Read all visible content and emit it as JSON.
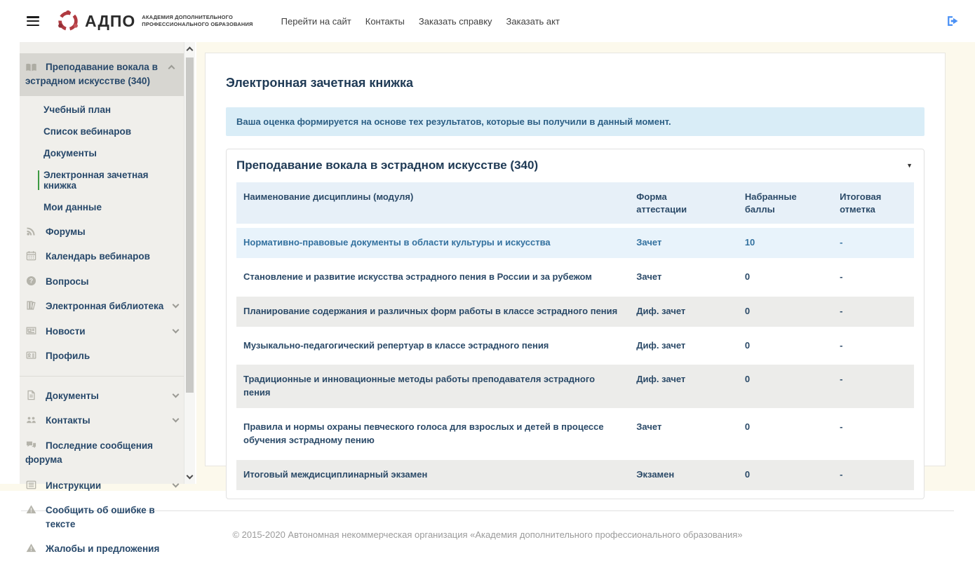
{
  "header": {
    "brand": {
      "name": "АДПО",
      "tagline_line1": "АКАДЕМИЯ ДОПОЛНИТЕЛЬНОГО",
      "tagline_line2": "ПРОФЕССИОНАЛЬНОГО ОБРАЗОВАНИЯ",
      "logo_icon": "adpo-circle-people-logo"
    },
    "menu_icon": "hamburger-icon",
    "logout_icon": "sign-out-icon",
    "nav": [
      {
        "label": "Перейти на сайт"
      },
      {
        "label": "Контакты"
      },
      {
        "label": "Заказать справку"
      },
      {
        "label": "Заказать акт"
      }
    ]
  },
  "sidebar": {
    "course": {
      "label": "Преподавание вокала в эстрадном искусстве (340)",
      "icon": "book-open-icon",
      "expanded": true,
      "children": [
        "Учебный план",
        "Список вебинаров",
        "Документы",
        "Электронная зачетная книжка",
        "Мои данные"
      ],
      "active_child": "Электронная зачетная книжка"
    },
    "items": [
      {
        "label": "Форумы",
        "icon": "forum-icon"
      },
      {
        "label": "Календарь вебинаров",
        "icon": "calendar-icon"
      },
      {
        "label": "Вопросы",
        "icon": "question-circle-icon"
      },
      {
        "label": "Электронная библиотека",
        "icon": "library-icon",
        "expandable": true
      },
      {
        "label": "Новости",
        "icon": "newspaper-icon",
        "expandable": true
      },
      {
        "label": "Профиль",
        "icon": "id-card-icon"
      }
    ],
    "items2": [
      {
        "label": "Документы",
        "icon": "file-text-icon",
        "expandable": true
      },
      {
        "label": "Контакты",
        "icon": "users-icon",
        "expandable": true
      },
      {
        "label": "Последние сообщения форума",
        "icon": "comments-icon"
      },
      {
        "label": "Инструкции",
        "icon": "list-alt-icon",
        "expandable": true
      },
      {
        "label": "Сообщить об ошибке в тексте",
        "icon": "warning-icon"
      },
      {
        "label": "Жалобы и предложения",
        "icon": "warning-icon"
      }
    ]
  },
  "main": {
    "title": "Электронная зачетная книжка",
    "info_banner": "Ваша оценка формируется на основе тех результатов, которые вы получили в данный момент.",
    "panel": {
      "title": "Преподавание вокала в эстрадном искусстве (340)",
      "caret_icon": "caret-down-icon",
      "table": {
        "columns": [
          "Наименование дисциплины (модуля)",
          "Форма аттестации",
          "Набранные баллы",
          "Итоговая отметка"
        ],
        "rows": [
          {
            "name": "Нормативно-правовые документы в области культуры и искусства",
            "form": "Зачет",
            "points": "10",
            "mark": "-"
          },
          {
            "name": "Становление и развитие искусства эстрадного пения в России и за рубежом",
            "form": "Зачет",
            "points": "0",
            "mark": "-"
          },
          {
            "name": "Планирование содержания и различных форм работы в классе эстрадного пения",
            "form": "Диф. зачет",
            "points": "0",
            "mark": "-"
          },
          {
            "name": "Музыкально-педагогический репертуар в классе эстрадного пения",
            "form": "Диф. зачет",
            "points": "0",
            "mark": "-"
          },
          {
            "name": "Традиционные и инновационные методы работы преподавателя эстрадного пения",
            "form": "Диф. зачет",
            "points": "0",
            "mark": "-"
          },
          {
            "name": "Правила и нормы охраны певческого голоса для взрослых и детей в процессе обучения эстрадному пению",
            "form": "Зачет",
            "points": "0",
            "mark": "-"
          },
          {
            "name": "Итоговый междисциплинарный экзамен",
            "form": "Экзамен",
            "points": "0",
            "mark": "-"
          }
        ]
      }
    }
  },
  "footer": {
    "copyright": "© 2015-2020 Автономная некоммерческая организация «Академия дополнительного профессионального образования»"
  },
  "colors": {
    "accent_navy": "#1f3a55",
    "link_blue": "#33719f",
    "banner_bg": "#d9edf7",
    "banner_text": "#2c5f85",
    "sidebar_bg": "#f0efeb",
    "sidebar_active_bg": "#d7d6d1",
    "page_bg": "#fcf9ec",
    "stripe_bg": "#ececea",
    "info_row_bg": "#e8f3fb",
    "logout_blue": "#4a90f5",
    "logo_red": "#b03a40",
    "active_marker_green": "#3c9a42"
  }
}
